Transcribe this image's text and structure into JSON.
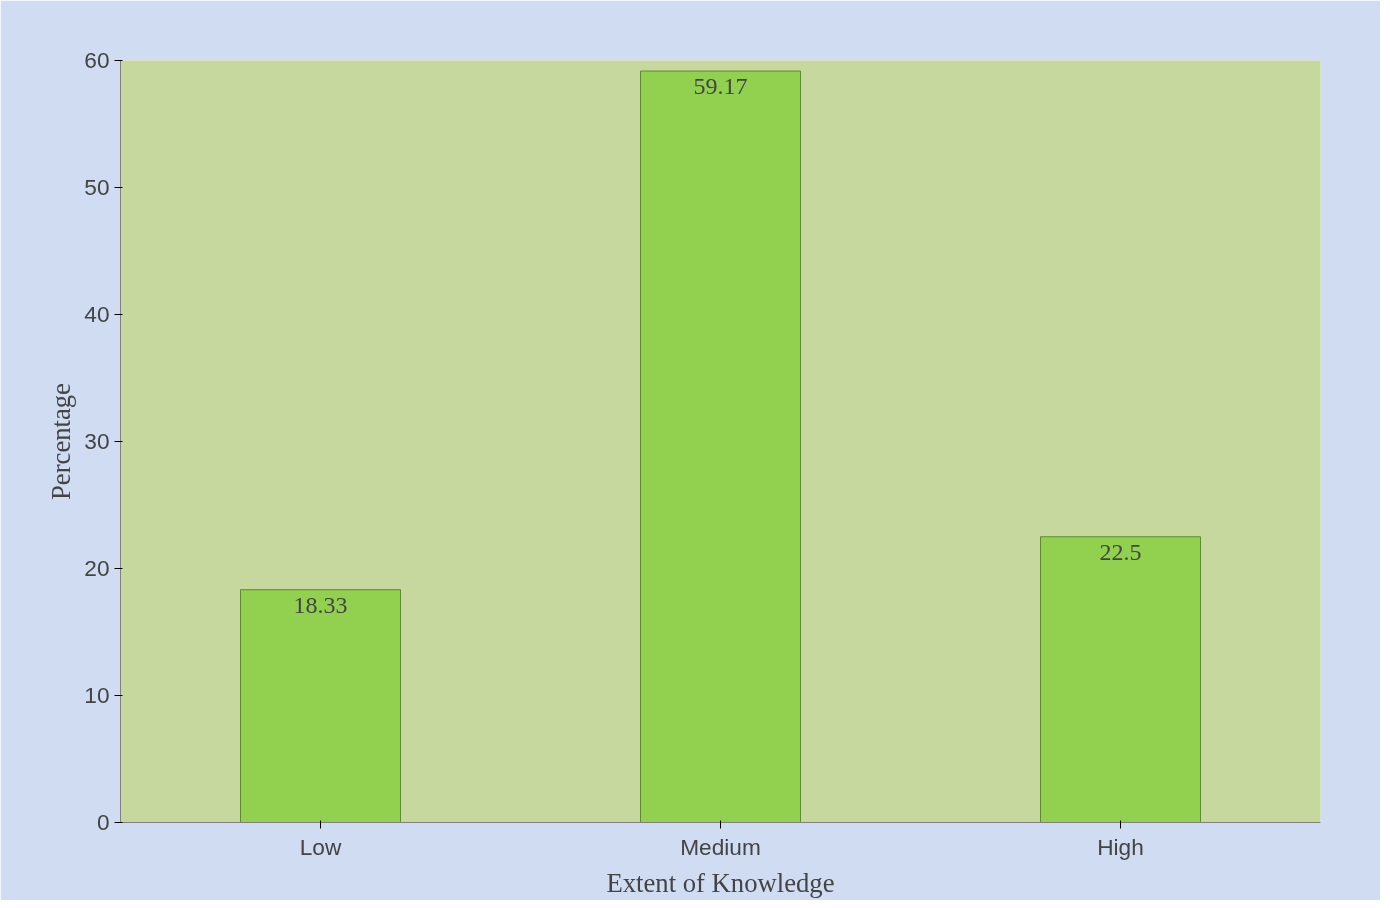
{
  "chart_data": {
    "type": "bar",
    "xlabel": "Extent of Knowledge",
    "ylabel": "Percentage",
    "categories": [
      "Low",
      "Medium",
      "High"
    ],
    "values": [
      18.33,
      59.17,
      22.5
    ],
    "color": "#92d050",
    "ylim": [
      0,
      60
    ],
    "yticks": [
      0,
      10,
      20,
      30,
      40,
      50,
      60
    ],
    "grid": false,
    "data_labels": true
  }
}
